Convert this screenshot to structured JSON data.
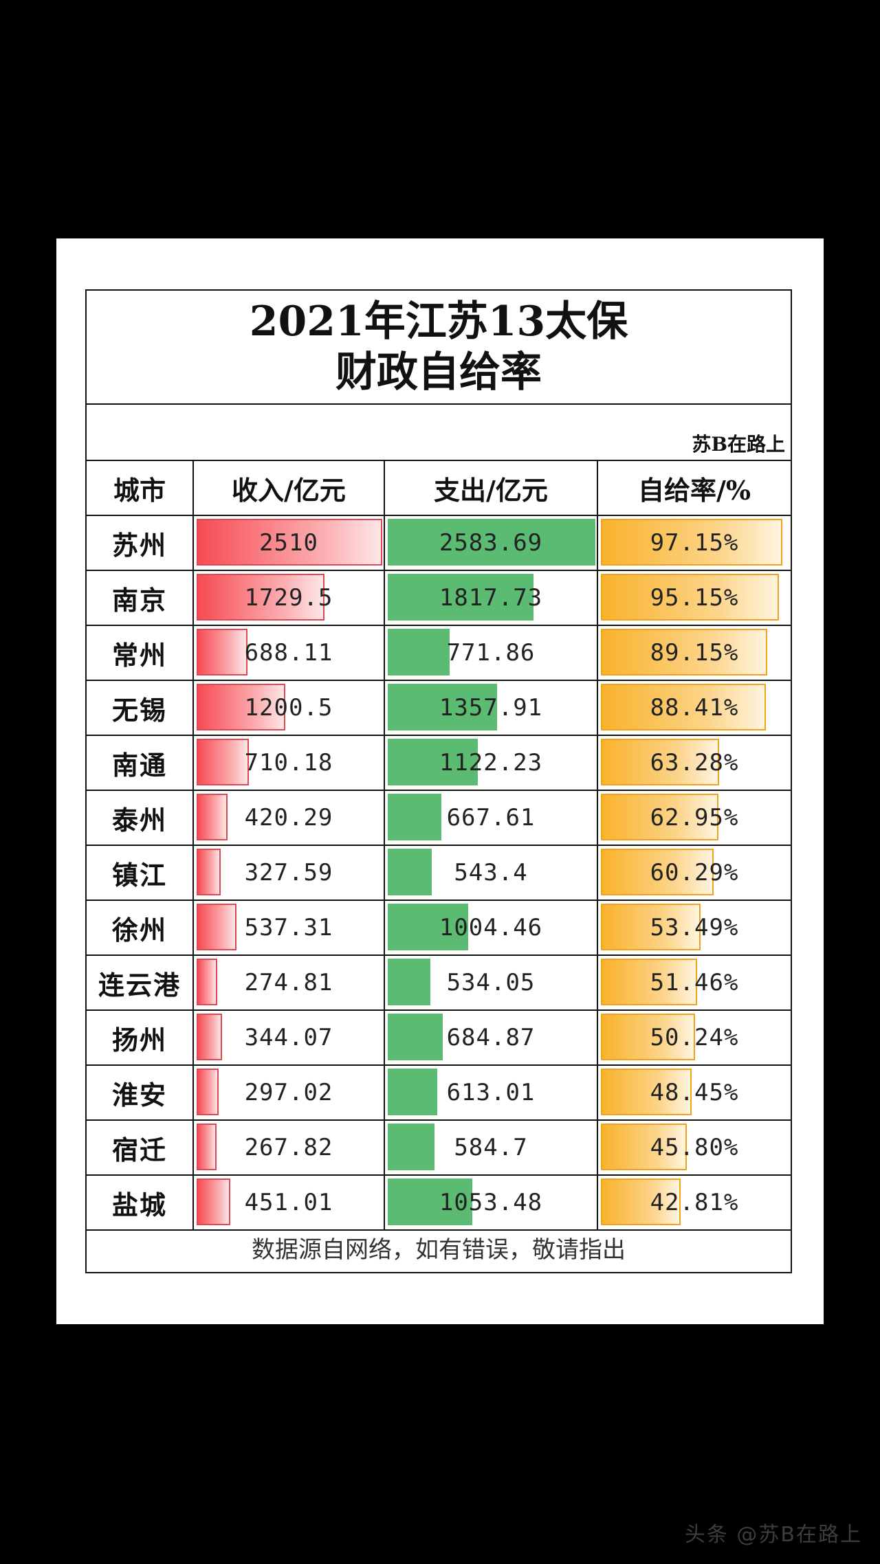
{
  "title": {
    "line1": "2021年江苏13太保",
    "line2": "财政自给率"
  },
  "credit": "苏B在路上",
  "watermark": "头条 @苏B在路上",
  "headers": {
    "city": "城市",
    "income": "收入/亿元",
    "expense": "支出/亿元",
    "rate": "自给率/%"
  },
  "footer": "数据源自网络，如有错误，敬请指出",
  "colors": {
    "income": "#f64b53",
    "expense": "#5bbb72",
    "rate": "#f9b22c"
  },
  "chart_data": {
    "type": "table",
    "columns": [
      "城市",
      "收入/亿元",
      "支出/亿元",
      "自给率/%"
    ],
    "rows": [
      {
        "city": "苏州",
        "income": "2510",
        "expense": "2583.69",
        "rate": "97.15%"
      },
      {
        "city": "南京",
        "income": "1729.5",
        "expense": "1817.73",
        "rate": "95.15%"
      },
      {
        "city": "常州",
        "income": "688.11",
        "expense": "771.86",
        "rate": "89.15%"
      },
      {
        "city": "无锡",
        "income": "1200.5",
        "expense": "1357.91",
        "rate": "88.41%"
      },
      {
        "city": "南通",
        "income": "710.18",
        "expense": "1122.23",
        "rate": "63.28%"
      },
      {
        "city": "泰州",
        "income": "420.29",
        "expense": "667.61",
        "rate": "62.95%"
      },
      {
        "city": "镇江",
        "income": "327.59",
        "expense": "543.4",
        "rate": "60.29%"
      },
      {
        "city": "徐州",
        "income": "537.31",
        "expense": "1004.46",
        "rate": "53.49%"
      },
      {
        "city": "连云港",
        "income": "274.81",
        "expense": "534.05",
        "rate": "51.46%"
      },
      {
        "city": "扬州",
        "income": "344.07",
        "expense": "684.87",
        "rate": "50.24%"
      },
      {
        "city": "淮安",
        "income": "297.02",
        "expense": "613.01",
        "rate": "48.45%"
      },
      {
        "city": "宿迁",
        "income": "267.82",
        "expense": "584.7",
        "rate": "45.80%"
      },
      {
        "city": "盐城",
        "income": "451.01",
        "expense": "1053.48",
        "rate": "42.81%"
      }
    ]
  }
}
